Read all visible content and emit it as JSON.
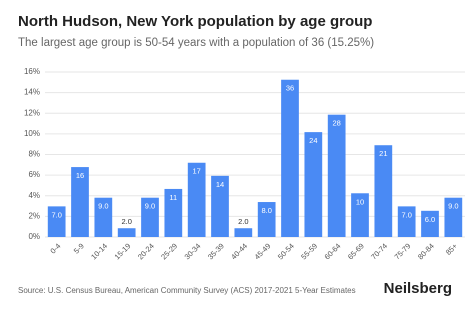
{
  "chart_data": {
    "type": "bar",
    "title": "North Hudson, New York population by age group",
    "subtitle": "The largest age group is 50-54 years with a population of 36 (15.25%)",
    "categories": [
      "0-4",
      "5-9",
      "10-14",
      "15-19",
      "20-24",
      "25-29",
      "30-34",
      "35-39",
      "40-44",
      "45-49",
      "50-54",
      "55-59",
      "60-64",
      "65-69",
      "70-74",
      "75-79",
      "80-84",
      "85+"
    ],
    "values": [
      2.97,
      6.78,
      3.81,
      0.85,
      3.81,
      4.66,
      7.2,
      5.93,
      0.85,
      3.39,
      15.25,
      10.17,
      11.86,
      4.24,
      8.9,
      2.97,
      2.54,
      3.81
    ],
    "data_labels": [
      "7.0",
      "16",
      "9.0",
      "2.0",
      "9.0",
      "11",
      "17",
      "14",
      "2.0",
      "8.0",
      "36",
      "24",
      "28",
      "10",
      "21",
      "7.0",
      "6.0",
      "9.0"
    ],
    "color": "#4a8af4",
    "ylim": [
      0,
      16
    ],
    "yticks": [
      {
        "value": 0,
        "label": "0%"
      },
      {
        "value": 2,
        "label": "2%"
      },
      {
        "value": 4,
        "label": "4%"
      },
      {
        "value": 6,
        "label": "6%"
      },
      {
        "value": 8,
        "label": "8%"
      },
      {
        "value": 10,
        "label": "10%"
      },
      {
        "value": 12,
        "label": "12%"
      },
      {
        "value": 14,
        "label": "14%"
      },
      {
        "value": 16,
        "label": "16%"
      }
    ],
    "grid": true,
    "source": "Source: U.S. Census Bureau, American Community Survey (ACS) 2017-2021 5-Year Estimates",
    "brand": "Neilsberg"
  }
}
